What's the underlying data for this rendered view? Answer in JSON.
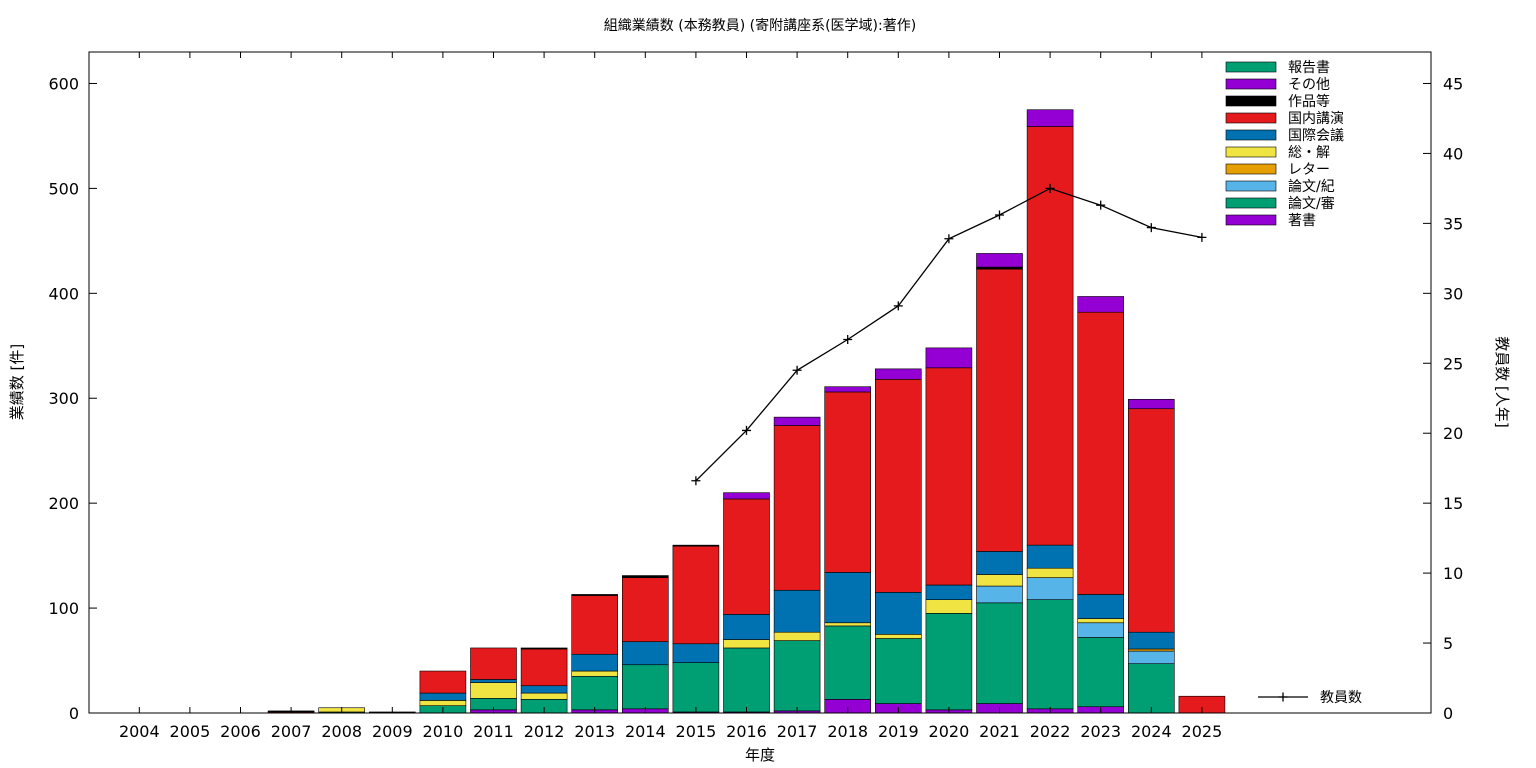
{
  "chart_data": {
    "type": "bar",
    "stacked": true,
    "title": "組織業績数 (本務教員) (寄附講座系(医学域):著作)",
    "xlabel": "年度",
    "ylabel": "業績数 [件]",
    "y2label": "教員数 [人年]",
    "ylim": [
      0,
      630
    ],
    "y2lim": [
      0,
      47.25
    ],
    "yticks": [
      0,
      100,
      200,
      300,
      400,
      500,
      600
    ],
    "y2ticks": [
      0,
      5,
      10,
      15,
      20,
      25,
      30,
      35,
      40,
      45
    ],
    "legend_position": "top-right",
    "categories": [
      "2004",
      "2005",
      "2006",
      "2007",
      "2008",
      "2009",
      "2010",
      "2011",
      "2012",
      "2013",
      "2014",
      "2015",
      "2016",
      "2017",
      "2018",
      "2019",
      "2020",
      "2021",
      "2022",
      "2023",
      "2024",
      "2025"
    ],
    "series": [
      {
        "name": "著書",
        "color": "#9400d3",
        "values": [
          0,
          0,
          0,
          0,
          0,
          0,
          0,
          3,
          0,
          3,
          4,
          1,
          1,
          2,
          13,
          9,
          3,
          9,
          4,
          6,
          0,
          0
        ]
      },
      {
        "name": "論文/審",
        "color": "#009e73",
        "values": [
          0,
          0,
          0,
          0,
          1,
          0,
          7,
          11,
          13,
          32,
          42,
          47,
          61,
          67,
          70,
          62,
          92,
          96,
          104,
          66,
          47,
          0
        ]
      },
      {
        "name": "論文/紀",
        "color": "#56b4e9",
        "values": [
          0,
          0,
          0,
          0,
          0,
          0,
          0,
          0,
          0,
          0,
          0,
          0,
          0,
          0,
          0,
          0,
          0,
          16,
          21,
          14,
          12,
          0
        ]
      },
      {
        "name": "レター",
        "color": "#e69f00",
        "values": [
          0,
          0,
          0,
          0,
          0,
          0,
          0,
          0,
          0,
          0,
          0,
          0,
          0,
          0,
          0,
          0,
          0,
          0,
          0,
          0,
          2,
          0
        ]
      },
      {
        "name": "総・解",
        "color": "#f0e442",
        "values": [
          0,
          0,
          0,
          0,
          4,
          0,
          5,
          15,
          6,
          5,
          0,
          0,
          8,
          8,
          3,
          4,
          13,
          11,
          9,
          4,
          0,
          0
        ]
      },
      {
        "name": "国際会議",
        "color": "#0072b2",
        "values": [
          0,
          0,
          0,
          0,
          0,
          0,
          7,
          3,
          7,
          16,
          22,
          18,
          24,
          40,
          48,
          40,
          14,
          22,
          22,
          23,
          16,
          0
        ]
      },
      {
        "name": "国内講演",
        "color": "#e41a1c",
        "values": [
          0,
          0,
          0,
          1,
          0,
          0,
          21,
          30,
          35,
          56,
          61,
          93,
          110,
          157,
          172,
          203,
          207,
          269,
          399,
          269,
          213,
          16
        ]
      },
      {
        "name": "作品等",
        "color": "#000000",
        "values": [
          0,
          0,
          0,
          1,
          0,
          1,
          0,
          0,
          1,
          1,
          2,
          1,
          0,
          0,
          0,
          0,
          0,
          2,
          0,
          0,
          0,
          0
        ]
      },
      {
        "name": "その他",
        "color": "#9400d3",
        "values": [
          0,
          0,
          0,
          0,
          0,
          0,
          0,
          0,
          0,
          0,
          0,
          0,
          6,
          8,
          5,
          10,
          19,
          13,
          16,
          15,
          9,
          0
        ]
      },
      {
        "name": "報告書",
        "color": "#009e73",
        "values": [
          0,
          0,
          0,
          0,
          0,
          0,
          0,
          0,
          0,
          0,
          0,
          0,
          0,
          0,
          0,
          0,
          0,
          0,
          0,
          0,
          0,
          0
        ]
      }
    ],
    "line": {
      "name": "教員数",
      "axis": "y2",
      "color": "#000000",
      "x": [
        "2015",
        "2016",
        "2017",
        "2018",
        "2019",
        "2020",
        "2021",
        "2022",
        "2023",
        "2024",
        "2025"
      ],
      "values": [
        16.6,
        20.2,
        24.5,
        26.7,
        29.1,
        33.9,
        35.6,
        37.5,
        36.3,
        34.7,
        34.0
      ]
    }
  }
}
